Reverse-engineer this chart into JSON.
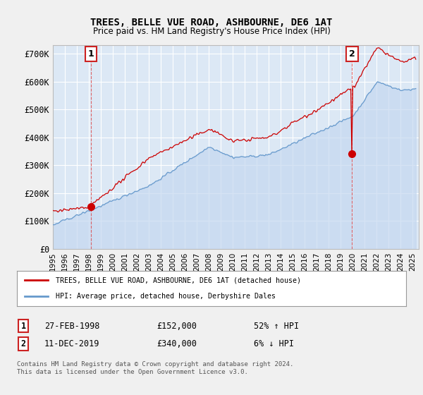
{
  "title": "TREES, BELLE VUE ROAD, ASHBOURNE, DE6 1AT",
  "subtitle": "Price paid vs. HM Land Registry's House Price Index (HPI)",
  "ylabel_ticks": [
    "£0",
    "£100K",
    "£200K",
    "£300K",
    "£400K",
    "£500K",
    "£600K",
    "£700K"
  ],
  "ytick_vals": [
    0,
    100000,
    200000,
    300000,
    400000,
    500000,
    600000,
    700000
  ],
  "ylim": [
    0,
    730000
  ],
  "xlim_start": 1995.0,
  "xlim_end": 2025.5,
  "background_color": "#f0f0f0",
  "plot_bg_color": "#dce8f5",
  "grid_color": "#ffffff",
  "red_line_color": "#cc0000",
  "blue_line_color": "#6699cc",
  "fill_color": "#c8d8ee",
  "marker1_year": 1998.16,
  "marker1_price": 152000,
  "marker2_year": 2019.94,
  "marker2_price": 340000,
  "legend_line1": "TREES, BELLE VUE ROAD, ASHBOURNE, DE6 1AT (detached house)",
  "legend_line2": "HPI: Average price, detached house, Derbyshire Dales",
  "table_row1_label": "1",
  "table_row1_date": "27-FEB-1998",
  "table_row1_price": "£152,000",
  "table_row1_hpi": "52% ↑ HPI",
  "table_row2_label": "2",
  "table_row2_date": "11-DEC-2019",
  "table_row2_price": "£340,000",
  "table_row2_hpi": "6% ↓ HPI",
  "footer": "Contains HM Land Registry data © Crown copyright and database right 2024.\nThis data is licensed under the Open Government Licence v3.0."
}
